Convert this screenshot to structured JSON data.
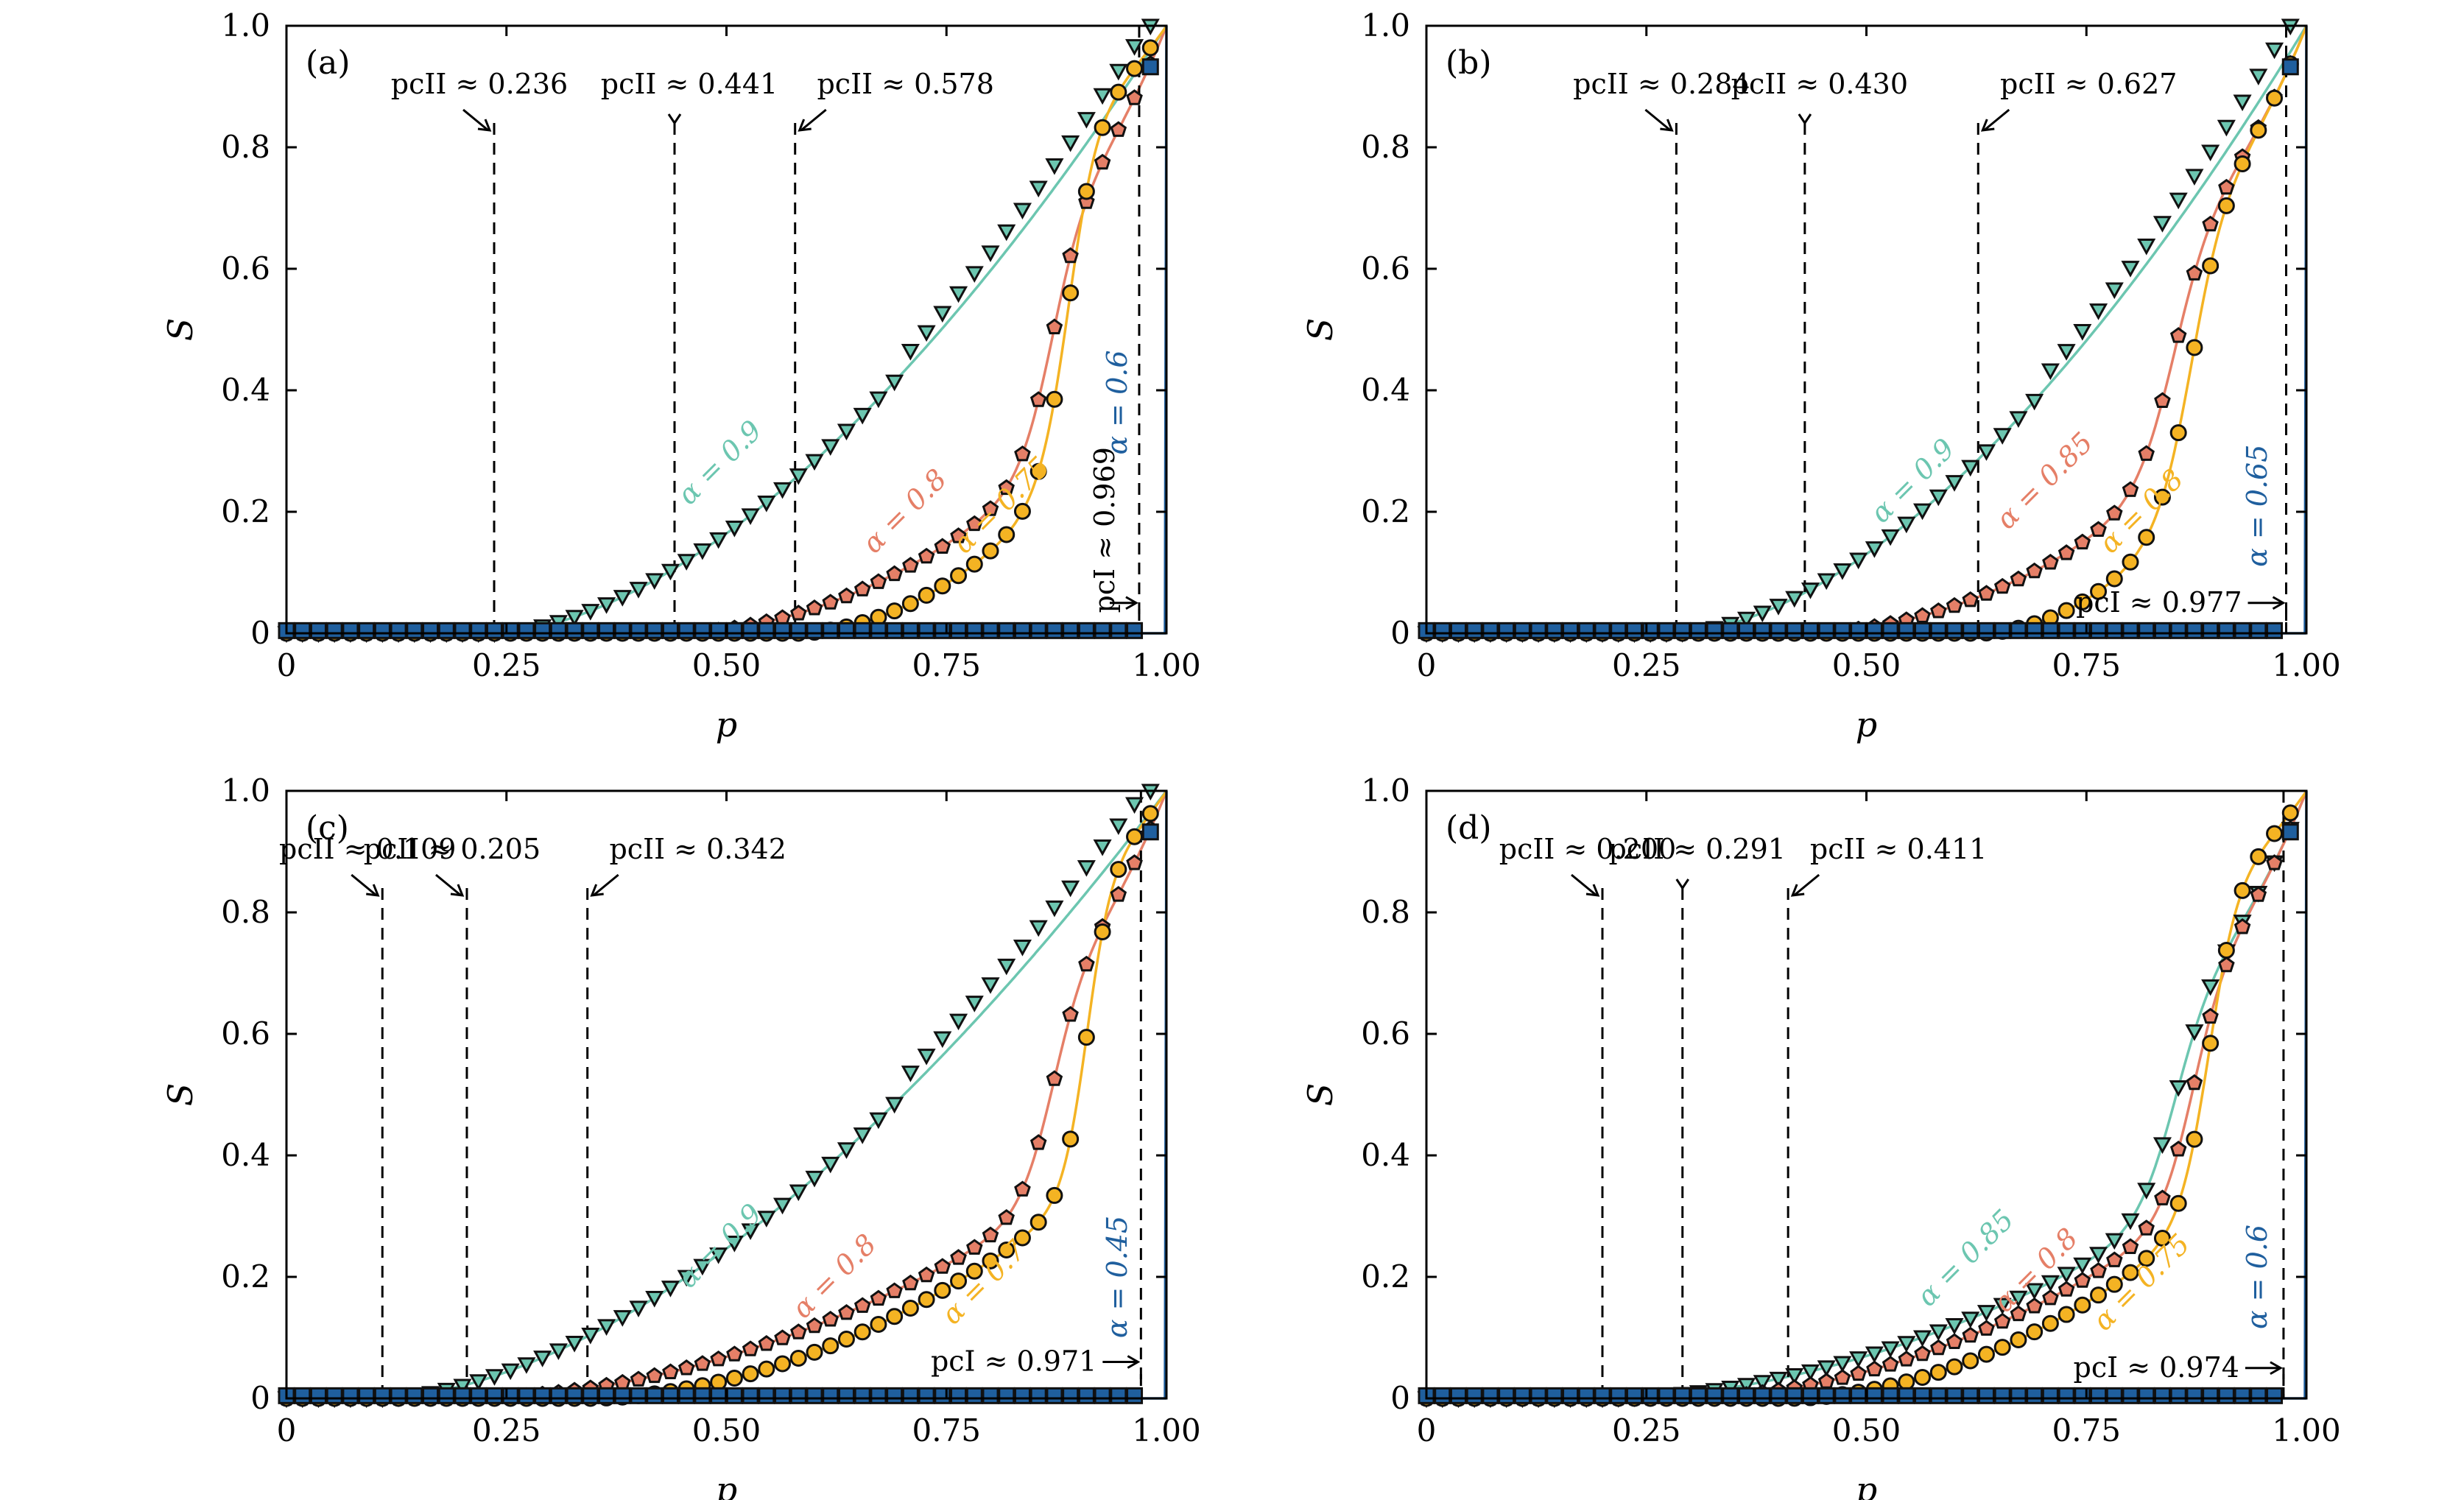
{
  "colors": {
    "a09": "#6cc6b0",
    "a08": "#e57f67",
    "a07": "#f4b323",
    "a06": "#1f5f9e",
    "marker_edge": "#111111"
  },
  "chart_data": [
    {
      "type": "line",
      "panel_label": "(a)",
      "xlabel": "p",
      "ylabel": "S",
      "xlim": [
        0,
        1
      ],
      "ylim": [
        0,
        1
      ],
      "xticks": [
        "0",
        "0.25",
        "0.50",
        "0.75",
        "1.00"
      ],
      "yticks": [
        "0",
        "0.2",
        "0.4",
        "0.6",
        "0.8",
        "1.0"
      ],
      "grid": false,
      "vlines": [
        0.236,
        0.441,
        0.578,
        0.969
      ],
      "annotations": [
        {
          "text": "pcII ≈ 0.236",
          "x": 0.236,
          "y": 0.86,
          "dir": "tr"
        },
        {
          "text": "pcII ≈ 0.441",
          "x": 0.441,
          "y": 0.86,
          "dir": "none"
        },
        {
          "text": "pcII ≈ 0.578",
          "x": 0.578,
          "y": 0.86,
          "dir": "tl"
        },
        {
          "text": "pcI ≈ 0.969",
          "x": 0.969,
          "y": 0.05,
          "dir": "rot"
        }
      ],
      "series": [
        {
          "name": "α = 0.9",
          "alpha": 0.9,
          "pc": 0.236,
          "marker": "triangle",
          "color": "#6cc6b0",
          "label_at": [
            0.5,
            0.27
          ]
        },
        {
          "name": "α = 0.8",
          "alpha": 0.8,
          "pc": 0.441,
          "marker": "pentagon",
          "color": "#e57f67",
          "label_at": [
            0.71,
            0.19
          ]
        },
        {
          "name": "α = 0.75",
          "alpha": 0.75,
          "pc": 0.578,
          "marker": "circle",
          "color": "#f4b323",
          "label_at": [
            0.82,
            0.2
          ]
        },
        {
          "name": "α = 0.6",
          "alpha": 0.6,
          "pc": 0.969,
          "marker": "square",
          "color": "#1f5f9e",
          "label_at": [
            0.955,
            0.38
          ]
        }
      ]
    },
    {
      "type": "line",
      "panel_label": "(b)",
      "xlabel": "p",
      "ylabel": "S",
      "xlim": [
        0,
        1
      ],
      "ylim": [
        0,
        1
      ],
      "xticks": [
        "0",
        "0.25",
        "0.50",
        "0.75",
        "1.00"
      ],
      "yticks": [
        "0",
        "0.2",
        "0.4",
        "0.6",
        "0.8",
        "1.0"
      ],
      "grid": false,
      "vlines": [
        0.284,
        0.43,
        0.627,
        0.977
      ],
      "annotations": [
        {
          "text": "pcII ≈ 0.284",
          "x": 0.284,
          "y": 0.86,
          "dir": "tr"
        },
        {
          "text": "pcII ≈ 0.430",
          "x": 0.43,
          "y": 0.86,
          "dir": "none"
        },
        {
          "text": "pcII ≈ 0.627",
          "x": 0.627,
          "y": 0.86,
          "dir": "tl"
        },
        {
          "text": "pcI ≈ 0.977",
          "x": 0.977,
          "y": 0.05,
          "dir": "left"
        }
      ],
      "series": [
        {
          "name": "α = 0.9",
          "alpha": 0.9,
          "pc": 0.284,
          "marker": "triangle",
          "color": "#6cc6b0",
          "label_at": [
            0.56,
            0.24
          ]
        },
        {
          "name": "α = 0.85",
          "alpha": 0.85,
          "pc": 0.43,
          "marker": "pentagon",
          "color": "#e57f67",
          "label_at": [
            0.71,
            0.24
          ]
        },
        {
          "name": "α = 0.8",
          "alpha": 0.8,
          "pc": 0.627,
          "marker": "circle",
          "color": "#f4b323",
          "label_at": [
            0.82,
            0.19
          ]
        },
        {
          "name": "α = 0.65",
          "alpha": 0.65,
          "pc": 0.977,
          "marker": "square",
          "color": "#1f5f9e",
          "label_at": [
            0.955,
            0.21
          ]
        }
      ]
    },
    {
      "type": "line",
      "panel_label": "(c)",
      "xlabel": "p",
      "ylabel": "S",
      "xlim": [
        0,
        1
      ],
      "ylim": [
        0,
        1
      ],
      "xticks": [
        "0",
        "0.25",
        "0.50",
        "0.75",
        "1.00"
      ],
      "yticks": [
        "0",
        "0.2",
        "0.4",
        "0.6",
        "0.8",
        "1.0"
      ],
      "grid": false,
      "vlines": [
        0.109,
        0.205,
        0.342,
        0.971
      ],
      "annotations": [
        {
          "text": "pcII ≈ 0.109",
          "x": 0.109,
          "y": 0.86,
          "dir": "tr"
        },
        {
          "text": "pcII ≈ 0.205",
          "x": 0.205,
          "y": 0.86,
          "dir": "tr"
        },
        {
          "text": "pcII ≈ 0.342",
          "x": 0.342,
          "y": 0.86,
          "dir": "tl"
        },
        {
          "text": "pcI ≈ 0.971",
          "x": 0.971,
          "y": 0.06,
          "dir": "left"
        }
      ],
      "series": [
        {
          "name": "α = 0.9",
          "alpha": 0.9,
          "pc": 0.109,
          "marker": "triangle",
          "color": "#6cc6b0",
          "label_at": [
            0.5,
            0.24
          ]
        },
        {
          "name": "α = 0.8",
          "alpha": 0.8,
          "pc": 0.205,
          "marker": "pentagon",
          "color": "#e57f67",
          "label_at": [
            0.63,
            0.19
          ]
        },
        {
          "name": "α = 0.7",
          "alpha": 0.7,
          "pc": 0.342,
          "marker": "circle",
          "color": "#f4b323",
          "label_at": [
            0.8,
            0.18
          ]
        },
        {
          "name": "α = 0.45",
          "alpha": 0.45,
          "pc": 0.971,
          "marker": "square",
          "color": "#1f5f9e",
          "label_at": [
            0.955,
            0.2
          ]
        }
      ]
    },
    {
      "type": "line",
      "panel_label": "(d)",
      "xlabel": "p",
      "ylabel": "S",
      "xlim": [
        0,
        1
      ],
      "ylim": [
        0,
        1
      ],
      "xticks": [
        "0",
        "0.25",
        "0.50",
        "0.75",
        "1.00"
      ],
      "yticks": [
        "0",
        "0.2",
        "0.4",
        "0.6",
        "0.8",
        "1.0"
      ],
      "grid": false,
      "vlines": [
        0.2,
        0.291,
        0.411,
        0.974
      ],
      "annotations": [
        {
          "text": "pcII ≈ 0.200",
          "x": 0.2,
          "y": 0.86,
          "dir": "tr"
        },
        {
          "text": "pcII ≈ 0.291",
          "x": 0.291,
          "y": 0.86,
          "dir": "none"
        },
        {
          "text": "pcII ≈ 0.411",
          "x": 0.411,
          "y": 0.86,
          "dir": "tl"
        },
        {
          "text": "pcI ≈ 0.974",
          "x": 0.974,
          "y": 0.05,
          "dir": "left"
        }
      ],
      "series": [
        {
          "name": "α = 0.85",
          "alpha": 0.85,
          "pc": 0.2,
          "marker": "triangle",
          "color": "#6cc6b0",
          "label_at": [
            0.62,
            0.22
          ]
        },
        {
          "name": "α = 0.8",
          "alpha": 0.8,
          "pc": 0.291,
          "marker": "pentagon",
          "color": "#e57f67",
          "label_at": [
            0.7,
            0.2
          ]
        },
        {
          "name": "α = 0.75",
          "alpha": 0.75,
          "pc": 0.411,
          "marker": "circle",
          "color": "#f4b323",
          "label_at": [
            0.82,
            0.18
          ]
        },
        {
          "name": "α = 0.6",
          "alpha": 0.6,
          "pc": 0.974,
          "marker": "square",
          "color": "#1f5f9e",
          "label_at": [
            0.955,
            0.2
          ]
        }
      ]
    }
  ]
}
